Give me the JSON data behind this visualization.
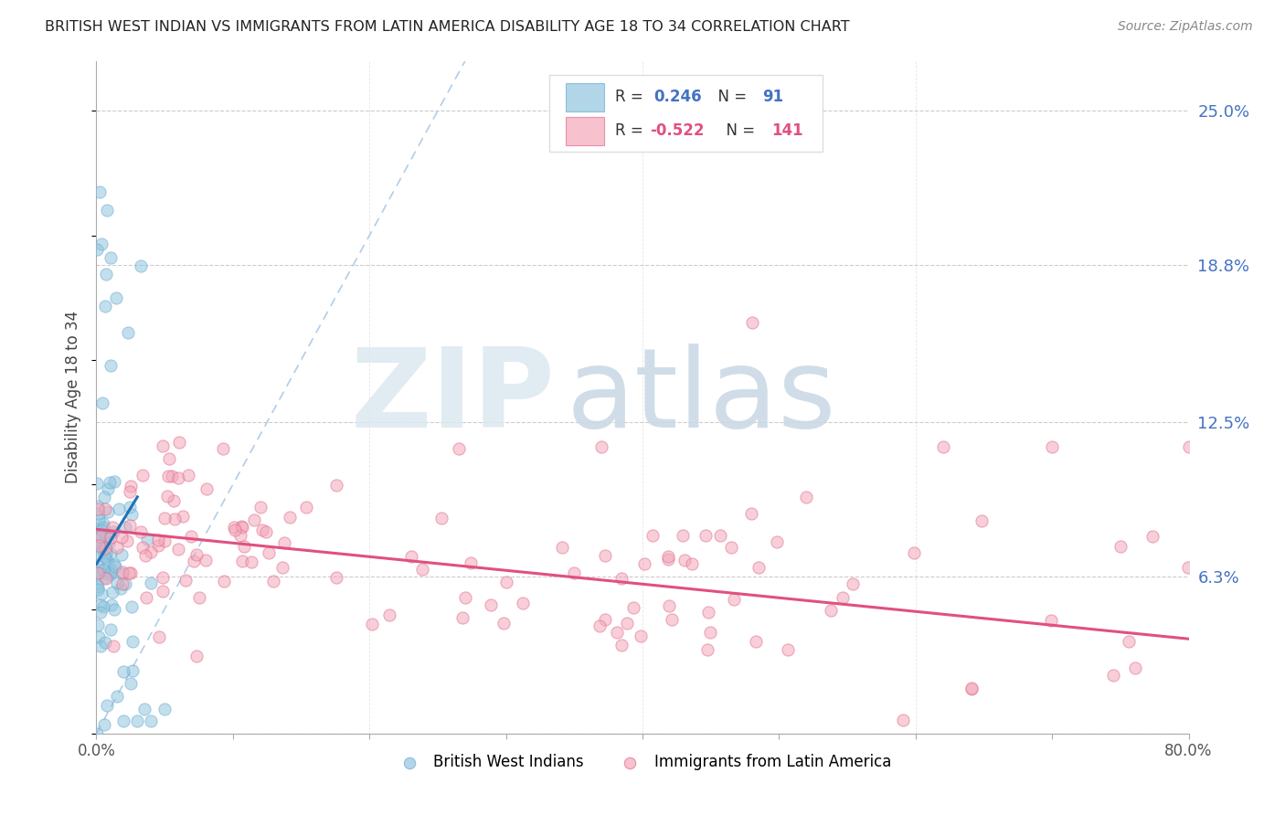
{
  "title": "BRITISH WEST INDIAN VS IMMIGRANTS FROM LATIN AMERICA DISABILITY AGE 18 TO 34 CORRELATION CHART",
  "source": "Source: ZipAtlas.com",
  "ylabel": "Disability Age 18 to 34",
  "xlim": [
    0.0,
    0.8
  ],
  "ylim": [
    0.0,
    0.27
  ],
  "ytick_positions": [
    0.0,
    0.063,
    0.125,
    0.188,
    0.25
  ],
  "ytick_labels_right": [
    "",
    "6.3%",
    "12.5%",
    "18.8%",
    "25.0%"
  ],
  "grid_color": "#cccccc",
  "background_color": "#ffffff",
  "watermark_zip": "ZIP",
  "watermark_atlas": "atlas",
  "blue_color": "#92c5de",
  "blue_edge_color": "#6baed6",
  "blue_line_color": "#2171b5",
  "pink_color": "#f4a7b9",
  "pink_edge_color": "#e07090",
  "pink_line_color": "#e05080",
  "diag_color": "#a8c8e8",
  "blue_N": 91,
  "pink_N": 141,
  "blue_trend_x0": 0.0,
  "blue_trend_y0": 0.068,
  "blue_trend_x1": 0.03,
  "blue_trend_y1": 0.095,
  "pink_trend_x0": 0.0,
  "pink_trend_y0": 0.082,
  "pink_trend_x1": 0.8,
  "pink_trend_y1": 0.038
}
